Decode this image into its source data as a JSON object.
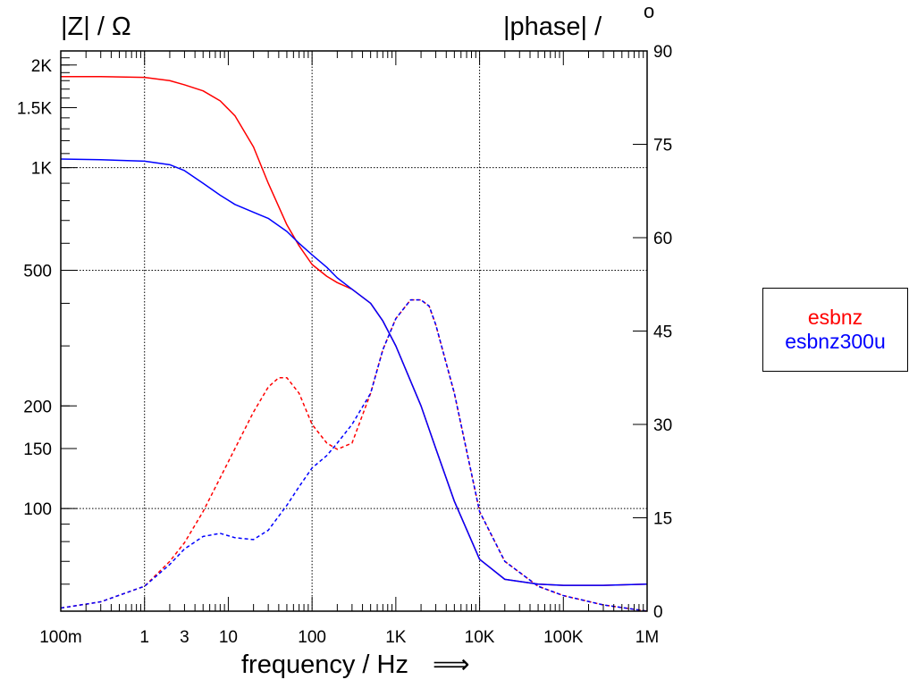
{
  "chart_data": {
    "type": "line",
    "xlabel": "frequency / Hz",
    "xlabel_arrow": "⟹",
    "ylabel_left": "|Z| / Ω",
    "ylabel_right": "|phase| /",
    "ylabel_right_sup": "o",
    "x_scale": "log",
    "xlim": [
      0.1,
      1000000
    ],
    "x_ticks": [
      {
        "value": 0.1,
        "label": "100m"
      },
      {
        "value": 1,
        "label": "1"
      },
      {
        "value": 3,
        "label": "3"
      },
      {
        "value": 10,
        "label": "10"
      },
      {
        "value": 100,
        "label": "100"
      },
      {
        "value": 1000,
        "label": "1K"
      },
      {
        "value": 10000,
        "label": "10K"
      },
      {
        "value": 100000,
        "label": "100K"
      },
      {
        "value": 1000000,
        "label": "1M"
      }
    ],
    "y_left_scale": "log",
    "y_left_lim": [
      50,
      2200
    ],
    "y_left_ticks": [
      {
        "value": 100,
        "label": "100"
      },
      {
        "value": 150,
        "label": "150"
      },
      {
        "value": 200,
        "label": "200"
      },
      {
        "value": 500,
        "label": "500"
      },
      {
        "value": 1000,
        "label": "1K"
      },
      {
        "value": 1500,
        "label": "1.5K"
      },
      {
        "value": 2000,
        "label": "2K"
      }
    ],
    "y_right_scale": "linear",
    "y_right_lim": [
      0,
      90
    ],
    "y_right_ticks": [
      {
        "value": 0,
        "label": "0"
      },
      {
        "value": 15,
        "label": "15"
      },
      {
        "value": 30,
        "label": "30"
      },
      {
        "value": 45,
        "label": "45"
      },
      {
        "value": 60,
        "label": "60"
      },
      {
        "value": 75,
        "label": "75"
      },
      {
        "value": 90,
        "label": "90"
      }
    ],
    "grid": true,
    "legend_position": "right",
    "series": [
      {
        "name": "esbnz",
        "color": "#ff0000",
        "magnitude": {
          "x": [
            0.1,
            0.3,
            1,
            2,
            3,
            5,
            8,
            12,
            20,
            30,
            50,
            70,
            100,
            150,
            200,
            300,
            500,
            700,
            1000,
            2000,
            3000,
            5000,
            10000,
            20000,
            50000,
            100000,
            300000,
            1000000
          ],
          "y": [
            1850,
            1850,
            1840,
            1800,
            1750,
            1680,
            1570,
            1420,
            1150,
            900,
            680,
            590,
            520,
            480,
            460,
            440,
            400,
            355,
            300,
            200,
            150,
            105,
            71,
            62,
            60,
            59.5,
            59.5,
            60
          ]
        },
        "phase": {
          "x": [
            0.1,
            0.3,
            1,
            2,
            3,
            5,
            10,
            20,
            30,
            40,
            50,
            70,
            100,
            150,
            200,
            300,
            500,
            700,
            1000,
            1500,
            2000,
            2500,
            3000,
            5000,
            10000,
            20000,
            50000,
            100000,
            300000,
            1000000
          ],
          "y": [
            0.5,
            1.5,
            4,
            8,
            11,
            16,
            24,
            32,
            36,
            37.5,
            37.5,
            35,
            30,
            27,
            26,
            27,
            35,
            42,
            47,
            50,
            50,
            49,
            46,
            35,
            16,
            8,
            4,
            2.5,
            1,
            0
          ]
        }
      },
      {
        "name": "esbnz300u",
        "color": "#0000ff",
        "magnitude": {
          "x": [
            0.1,
            0.3,
            1,
            2,
            3,
            5,
            8,
            12,
            20,
            30,
            50,
            70,
            100,
            150,
            200,
            300,
            500,
            700,
            1000,
            2000,
            3000,
            5000,
            10000,
            20000,
            50000,
            100000,
            300000,
            1000000
          ],
          "y": [
            1060,
            1055,
            1045,
            1020,
            980,
            900,
            830,
            780,
            740,
            710,
            650,
            600,
            555,
            510,
            475,
            440,
            400,
            355,
            300,
            200,
            150,
            105,
            71,
            62,
            60,
            59.5,
            59.5,
            60
          ]
        },
        "phase": {
          "x": [
            0.1,
            0.3,
            1,
            2,
            3,
            5,
            8,
            12,
            20,
            30,
            50,
            70,
            100,
            150,
            200,
            300,
            500,
            700,
            1000,
            1500,
            2000,
            2500,
            3000,
            5000,
            10000,
            20000,
            50000,
            100000,
            300000,
            1000000
          ],
          "y": [
            0.5,
            1.5,
            4,
            7.5,
            10,
            12,
            12.5,
            11.8,
            11.5,
            13,
            17,
            20,
            23,
            25,
            27,
            30,
            35,
            42,
            47,
            50,
            50,
            49,
            46,
            35,
            16,
            8,
            4,
            2.5,
            1,
            0
          ]
        }
      }
    ]
  }
}
